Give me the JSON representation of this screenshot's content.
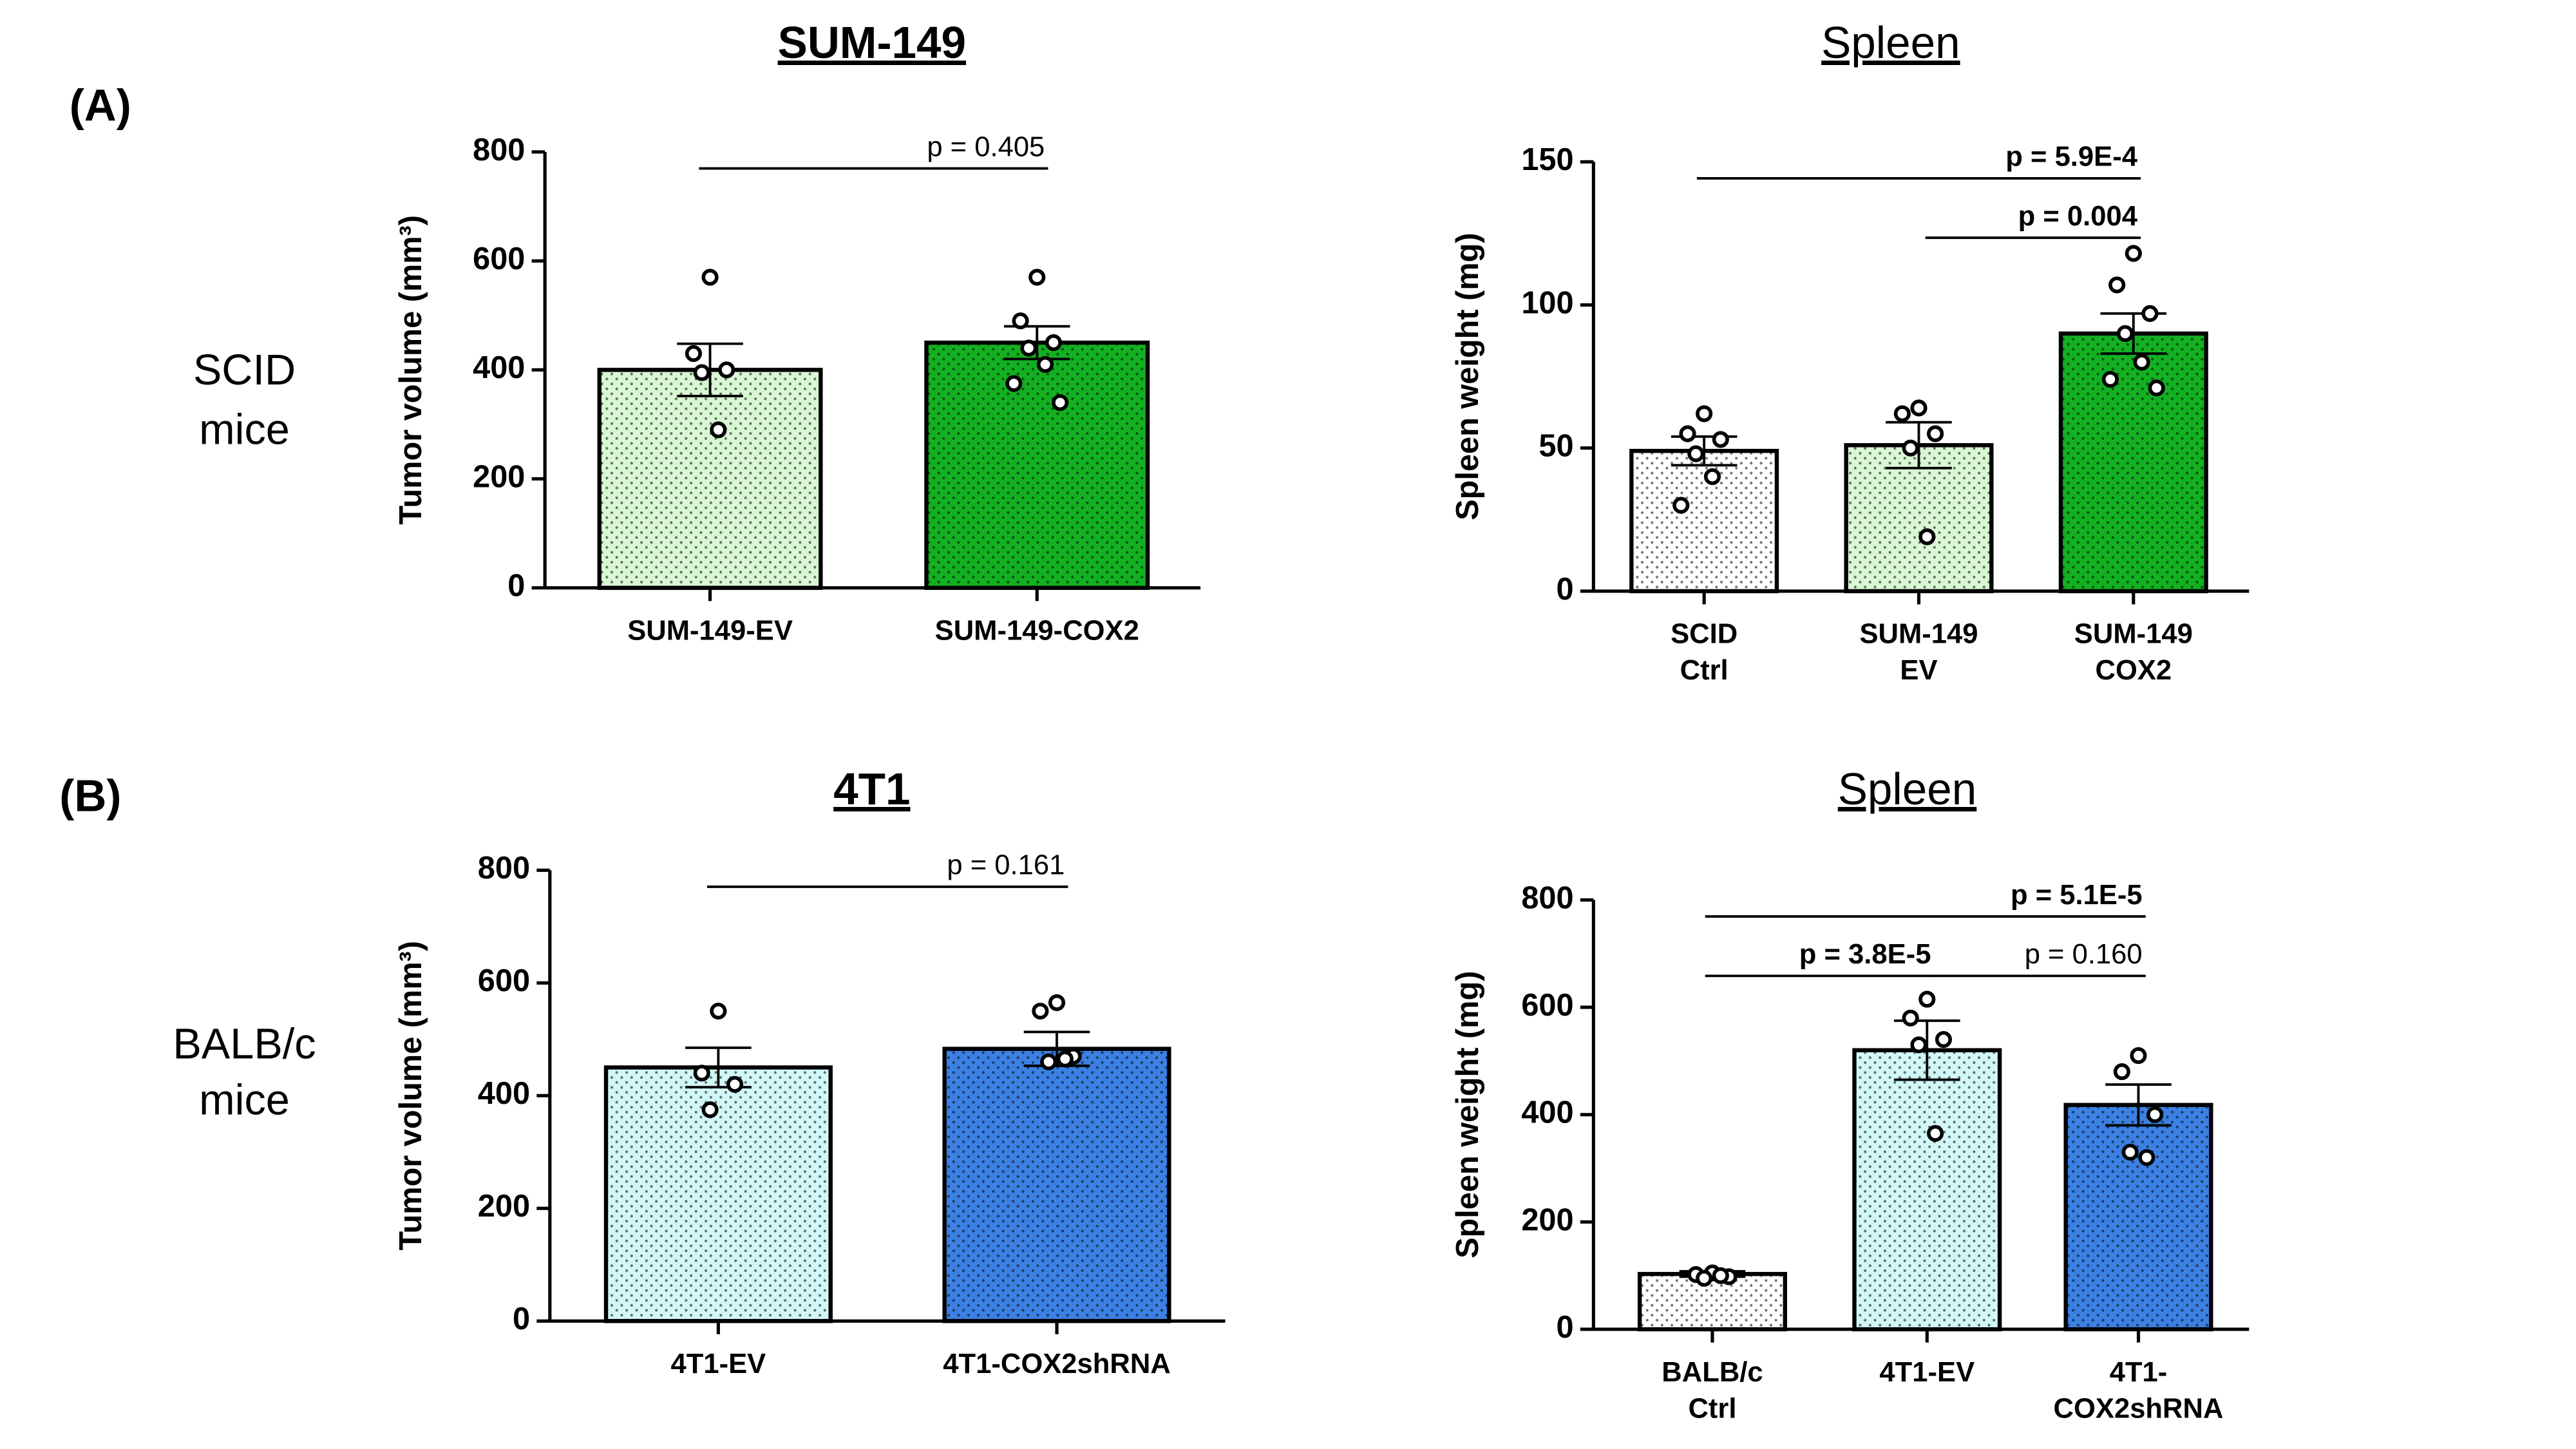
{
  "panels": [
    {
      "label": "(A)",
      "row_label": [
        "SCID",
        "mice"
      ]
    },
    {
      "label": "(B)",
      "row_label": [
        "BALB/c",
        "mice"
      ]
    }
  ],
  "chart_data": [
    {
      "type": "bar",
      "title": "SUM-149",
      "title_bold": true,
      "ylabel": "Tumor volume (mm³)",
      "categories": [
        [
          "SUM-149-EV"
        ],
        [
          "SUM-149-COX2"
        ]
      ],
      "values": [
        400,
        450
      ],
      "errors": [
        48,
        30
      ],
      "colors": [
        "#d9f7d4",
        "#13b022"
      ],
      "points": [
        [
          570,
          430,
          400,
          395,
          290
        ],
        [
          570,
          490,
          450,
          440,
          410,
          375,
          340
        ]
      ],
      "ylim": [
        0,
        800
      ],
      "yticks": [
        0,
        200,
        400,
        600,
        800
      ],
      "annotations": [
        {
          "label": "p = 0.405",
          "from": 0,
          "to": 1,
          "bold": false
        }
      ]
    },
    {
      "type": "bar",
      "title": "Spleen",
      "title_bold": false,
      "ylabel": "Spleen weight (mg)",
      "categories": [
        [
          "SCID",
          "Ctrl"
        ],
        [
          "SUM-149",
          "EV"
        ],
        [
          "SUM-149",
          "COX2"
        ]
      ],
      "values": [
        49,
        51,
        90
      ],
      "errors": [
        5,
        8,
        7
      ],
      "colors": [
        "#ffffff",
        "#d9f7d4",
        "#13b022"
      ],
      "points": [
        [
          62,
          55,
          53,
          48,
          40,
          30
        ],
        [
          64,
          62,
          55,
          50,
          19
        ],
        [
          118,
          107,
          97,
          90,
          80,
          74,
          71
        ]
      ],
      "ylim": [
        0,
        150
      ],
      "yticks": [
        0,
        50,
        100,
        150
      ],
      "annotations": [
        {
          "label": "p = 5.9E-4",
          "from": 0,
          "to": 2,
          "bold": true
        },
        {
          "label": "p = 0.004",
          "from": 1,
          "to": 2,
          "bold": true
        }
      ]
    },
    {
      "type": "bar",
      "title": "4T1",
      "title_bold": true,
      "ylabel": "Tumor volume (mm³)",
      "categories": [
        [
          "4T1-EV"
        ],
        [
          "4T1-COX2shRNA"
        ]
      ],
      "values": [
        450,
        483
      ],
      "errors": [
        35,
        30
      ],
      "colors": [
        "#d2f7f7",
        "#3b80e2"
      ],
      "points": [
        [
          550,
          440,
          420,
          375
        ],
        [
          565,
          550,
          470,
          460,
          465
        ]
      ],
      "ylim": [
        0,
        800
      ],
      "yticks": [
        0,
        200,
        400,
        600,
        800
      ],
      "annotations": [
        {
          "label": "p = 0.161",
          "from": 0,
          "to": 1,
          "bold": false
        }
      ]
    },
    {
      "type": "bar",
      "title": "Spleen",
      "title_bold": false,
      "ylabel": "Spleen weight (mg)",
      "categories": [
        [
          "BALB/c",
          "Ctrl"
        ],
        [
          "4T1-EV"
        ],
        [
          "4T1-",
          "COX2shRNA"
        ]
      ],
      "values": [
        103,
        520,
        418
      ],
      "errors": [
        5,
        55,
        38
      ],
      "colors": [
        "#ffffff",
        "#d2f7f7",
        "#3b80e2"
      ],
      "points": [
        [
          105,
          102,
          98,
          95,
          100
        ],
        [
          615,
          580,
          540,
          530,
          365
        ],
        [
          510,
          480,
          400,
          330,
          320
        ]
      ],
      "ylim": [
        0,
        800
      ],
      "yticks": [
        0,
        200,
        400,
        600,
        800
      ],
      "annotations": [
        {
          "label": "p = 5.1E-5",
          "from": 0,
          "to": 2,
          "bold": true
        },
        {
          "label": "p = 3.8E-5",
          "from": 0,
          "to": 1,
          "bold": true
        },
        {
          "label": "p = 0.160",
          "from": 1,
          "to": 2,
          "bold": false
        }
      ]
    }
  ]
}
